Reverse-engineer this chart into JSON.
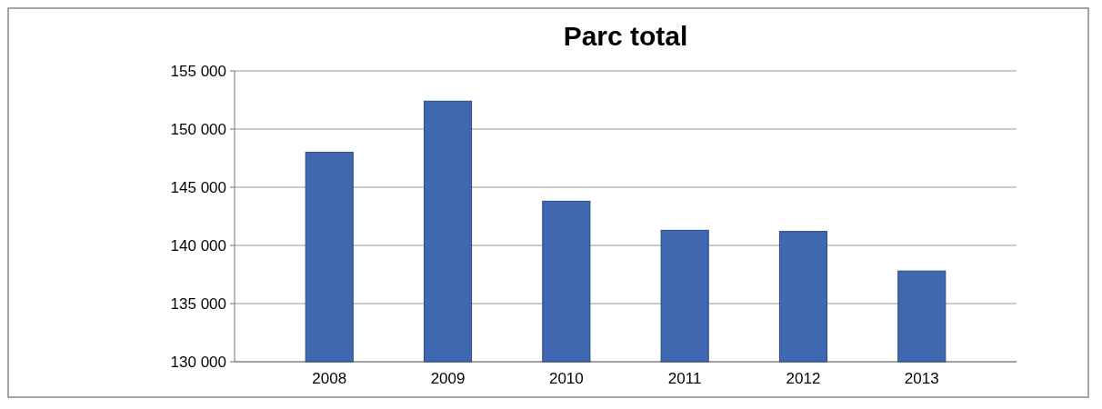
{
  "chart_data": {
    "type": "bar",
    "title": "Parc total",
    "categories": [
      "2008",
      "2009",
      "2010",
      "2011",
      "2012",
      "2013"
    ],
    "values": [
      148000,
      152400,
      143800,
      141300,
      141200,
      137800
    ],
    "color": "#4068b0",
    "ylim": [
      130000,
      155000
    ],
    "yticks": [
      {
        "value": 130000,
        "label": "130 000"
      },
      {
        "value": 135000,
        "label": "135 000"
      },
      {
        "value": 140000,
        "label": "140 000"
      },
      {
        "value": 145000,
        "label": "145 000"
      },
      {
        "value": 150000,
        "label": "150 000"
      },
      {
        "value": 155000,
        "label": "155 000"
      }
    ],
    "grid": true
  }
}
